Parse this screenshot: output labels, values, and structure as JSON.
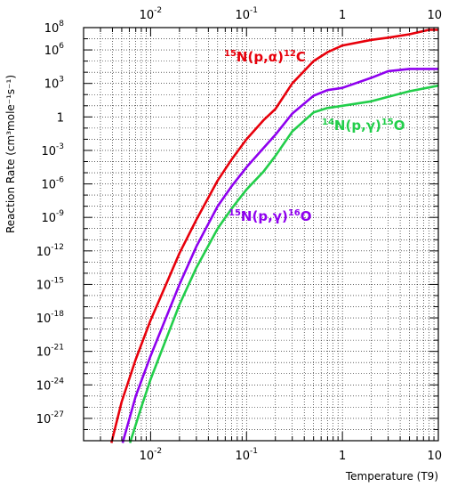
{
  "chart_data": {
    "type": "line",
    "title": "",
    "xlabel": "Temperature (T9)",
    "ylabel": "Reaction Rate (cm³mole⁻¹s⁻¹)",
    "x_scale": "log",
    "y_scale": "log",
    "xlim": [
      0.002,
      10
    ],
    "ylim": [
      1e-29,
      100000000.0
    ],
    "grid": true,
    "x_ticks": [
      {
        "value": 0.01,
        "label": "10",
        "exp": "-2"
      },
      {
        "value": 0.1,
        "label": "10",
        "exp": "-1"
      },
      {
        "value": 1,
        "label": "1",
        "exp": ""
      },
      {
        "value": 10,
        "label": "10",
        "exp": ""
      }
    ],
    "y_ticks": [
      {
        "value": 100000000.0,
        "label": "10",
        "exp": "8"
      },
      {
        "value": 1000000.0,
        "label": "10",
        "exp": "6"
      },
      {
        "value": 1000.0,
        "label": "10",
        "exp": "3"
      },
      {
        "value": 1,
        "label": "1",
        "exp": ""
      },
      {
        "value": 0.001,
        "label": "10",
        "exp": "-3"
      },
      {
        "value": 1e-06,
        "label": "10",
        "exp": "-6"
      },
      {
        "value": 1e-09,
        "label": "10",
        "exp": "-9"
      },
      {
        "value": 1e-12,
        "label": "10",
        "exp": "-12"
      },
      {
        "value": 1e-15,
        "label": "10",
        "exp": "-15"
      },
      {
        "value": 1e-18,
        "label": "10",
        "exp": "-18"
      },
      {
        "value": 1e-21,
        "label": "10",
        "exp": "-21"
      },
      {
        "value": 1e-24,
        "label": "10",
        "exp": "-24"
      },
      {
        "value": 1e-27,
        "label": "10",
        "exp": "-27"
      }
    ],
    "series": [
      {
        "name": "15N(p,α)12C",
        "label_parts": [
          "15",
          "N(p,α)",
          "12",
          "C"
        ],
        "color": "#e8000b",
        "x": [
          0.0039,
          0.005,
          0.007,
          0.01,
          0.02,
          0.03,
          0.05,
          0.07,
          0.1,
          0.15,
          0.2,
          0.3,
          0.5,
          0.7,
          1,
          2,
          3,
          5,
          8,
          10
        ],
        "log10_y": [
          -29.8,
          -25.5,
          -21.7,
          -18.2,
          -12.2,
          -9.2,
          -5.7,
          -3.8,
          -2.0,
          -0.3,
          0.7,
          3.0,
          5.0,
          5.8,
          6.4,
          6.9,
          7.1,
          7.4,
          7.8,
          7.8
        ]
      },
      {
        "name": "15N(p,γ)16O",
        "label_parts": [
          "15",
          "N(p,γ)",
          "16",
          "O"
        ],
        "color": "#8f00ef",
        "x": [
          0.0051,
          0.007,
          0.01,
          0.02,
          0.03,
          0.05,
          0.07,
          0.1,
          0.15,
          0.2,
          0.3,
          0.5,
          0.7,
          1,
          2,
          3,
          5,
          10
        ],
        "log10_y": [
          -29.8,
          -25.0,
          -21.4,
          -15.0,
          -11.6,
          -8.0,
          -6.2,
          -4.5,
          -2.8,
          -1.6,
          0.3,
          1.9,
          2.4,
          2.6,
          3.5,
          4.1,
          4.3,
          4.3
        ]
      },
      {
        "name": "14N(p,γ)15O",
        "label_parts": [
          "14",
          "N(p,γ)",
          "15",
          "O"
        ],
        "color": "#22ce4a",
        "x": [
          0.0061,
          0.008,
          0.01,
          0.02,
          0.03,
          0.05,
          0.07,
          0.1,
          0.15,
          0.2,
          0.3,
          0.5,
          0.7,
          1,
          2,
          3,
          5,
          10
        ],
        "log10_y": [
          -29.8,
          -26.0,
          -23.5,
          -16.8,
          -13.5,
          -10.0,
          -8.2,
          -6.5,
          -4.9,
          -3.5,
          -1.3,
          0.4,
          0.8,
          1.0,
          1.4,
          1.8,
          2.3,
          2.8
        ]
      }
    ]
  }
}
